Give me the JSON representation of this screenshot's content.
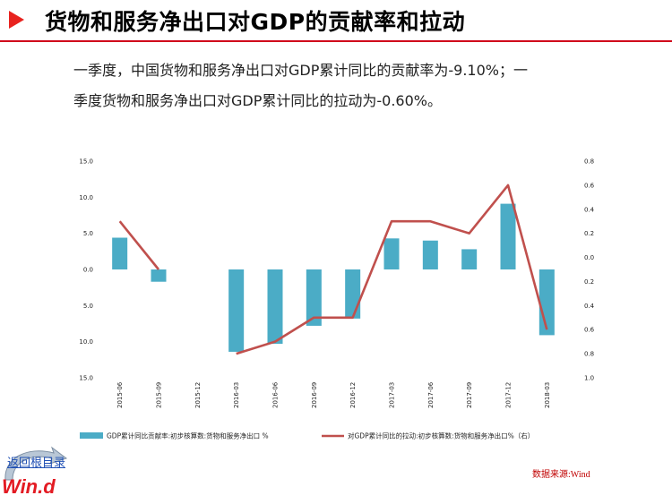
{
  "page": {
    "title": "货物和服务净出口对GDP的贡献率和拉动",
    "summary_line1": "一季度，中国货物和服务净出口对GDP累计同比的贡献率为-9.10%；一",
    "summary_line2": "季度货物和服务净出口对GDP累计同比的拉动为-0.60%。",
    "source": "数据来源:Wind",
    "back_link": "返回根目录",
    "logo": "Win.d"
  },
  "colors": {
    "bar": "#4bacc6",
    "line": "#c0504d",
    "accent": "#e8231f"
  },
  "chart_data": {
    "type": "bar",
    "categories": [
      "2015-06",
      "2015-09",
      "2015-12",
      "2016-03",
      "2016-06",
      "2016-09",
      "2016-12",
      "2017-03",
      "2017-06",
      "2017-09",
      "2017-12",
      "2018-03"
    ],
    "series": [
      {
        "name": "GDP累计同比贡献率:初步核算数:货物和服务净出口 %",
        "type": "bar",
        "axis": "left",
        "values": [
          4.4,
          -1.7,
          0.0,
          -11.4,
          -10.3,
          -7.8,
          -6.8,
          4.3,
          4.0,
          2.8,
          9.1,
          -9.1
        ]
      },
      {
        "name": "对GDP累计同比的拉动:初步核算数:货物和服务净出口%（右）",
        "type": "line",
        "axis": "right",
        "values": [
          0.3,
          -0.1,
          null,
          -0.8,
          -0.7,
          -0.5,
          -0.5,
          0.3,
          0.3,
          0.2,
          0.6,
          -0.6
        ]
      }
    ],
    "left_axis": {
      "ylim": [
        -15,
        15
      ],
      "ticks": [
        15,
        10,
        5,
        0,
        -5,
        -10,
        -15
      ],
      "tick_labels": [
        "15.0",
        "10.0",
        "5.0",
        "0.0",
        "5.0",
        "10.0",
        "15.0"
      ]
    },
    "right_axis": {
      "ylim": [
        -1,
        0.8
      ],
      "ticks": [
        0.8,
        0.6,
        0.4,
        0.2,
        0,
        -0.2,
        -0.4,
        -0.6,
        -0.8,
        -1.0
      ],
      "tick_labels": [
        "0.8",
        "0.6",
        "0.4",
        "0.2",
        "0.0",
        "0.2",
        "0.4",
        "0.6",
        "0.8",
        "1.0"
      ]
    },
    "legend_position": "bottom",
    "grid": false
  }
}
